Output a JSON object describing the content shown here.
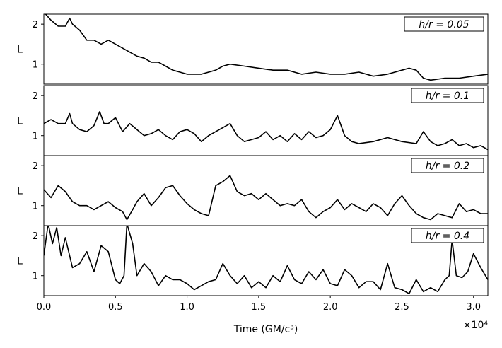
{
  "chart_data": {
    "type": "line",
    "layout": "stacked-panels-shared-x",
    "xlabel": "Time (GM/c³)",
    "x_multiplier": "×10⁴",
    "xlim": [
      0,
      31000
    ],
    "x_ticks": [
      0,
      5000,
      10000,
      15000,
      20000,
      25000,
      30000
    ],
    "x_tick_labels": [
      "0.0",
      "0.5",
      "1.0",
      "1.5",
      "2.0",
      "2.5",
      "3.0"
    ],
    "ylabel": "L",
    "ylim": [
      0.5,
      2.25
    ],
    "y_ticks": [
      1,
      2
    ],
    "y_tick_labels": [
      "1",
      "2"
    ],
    "line_color": "#000000",
    "panels": [
      {
        "label": "h/r = 0.05",
        "x": [
          0,
          500,
          1000,
          1500,
          1800,
          2000,
          2500,
          3000,
          3500,
          4000,
          4500,
          5000,
          5500,
          6000,
          6500,
          7000,
          7500,
          8000,
          8500,
          9000,
          9500,
          10000,
          11000,
          12000,
          12500,
          13000,
          14000,
          15000,
          16000,
          17000,
          18000,
          19000,
          20000,
          21000,
          22000,
          23000,
          24000,
          25000,
          25500,
          26000,
          26500,
          27000,
          28000,
          29000,
          30000,
          31000
        ],
        "y": [
          2.3,
          2.1,
          1.95,
          1.95,
          2.15,
          2.0,
          1.85,
          1.6,
          1.6,
          1.5,
          1.6,
          1.5,
          1.4,
          1.3,
          1.2,
          1.15,
          1.05,
          1.05,
          0.95,
          0.85,
          0.8,
          0.75,
          0.75,
          0.85,
          0.95,
          1.0,
          0.95,
          0.9,
          0.85,
          0.85,
          0.75,
          0.8,
          0.75,
          0.75,
          0.8,
          0.7,
          0.75,
          0.85,
          0.9,
          0.85,
          0.65,
          0.6,
          0.65,
          0.65,
          0.7,
          0.75
        ]
      },
      {
        "label": "h/r = 0.1",
        "x": [
          0,
          500,
          1000,
          1500,
          1800,
          2000,
          2500,
          3000,
          3500,
          3900,
          4200,
          4500,
          5000,
          5500,
          6000,
          6500,
          7000,
          7500,
          8000,
          8500,
          9000,
          9500,
          10000,
          10500,
          11000,
          11500,
          12000,
          12500,
          13000,
          13500,
          14000,
          14500,
          15000,
          15500,
          16000,
          16500,
          17000,
          17500,
          18000,
          18500,
          19000,
          19500,
          20000,
          20500,
          21000,
          21500,
          22000,
          23000,
          24000,
          25000,
          26000,
          26500,
          27000,
          27500,
          28000,
          28500,
          29000,
          29500,
          30000,
          30500,
          31000
        ],
        "y": [
          1.3,
          1.4,
          1.3,
          1.3,
          1.55,
          1.3,
          1.15,
          1.1,
          1.25,
          1.6,
          1.3,
          1.3,
          1.45,
          1.1,
          1.3,
          1.15,
          1.0,
          1.05,
          1.15,
          1.0,
          0.9,
          1.1,
          1.15,
          1.05,
          0.85,
          1.0,
          1.1,
          1.2,
          1.3,
          1.0,
          0.85,
          0.9,
          0.95,
          1.1,
          0.9,
          1.0,
          0.85,
          1.05,
          0.9,
          1.1,
          0.95,
          1.0,
          1.15,
          1.5,
          1.0,
          0.85,
          0.8,
          0.85,
          0.95,
          0.85,
          0.8,
          1.1,
          0.85,
          0.75,
          0.8,
          0.9,
          0.75,
          0.8,
          0.7,
          0.75,
          0.65
        ]
      },
      {
        "label": "h/r = 0.2",
        "x": [
          0,
          500,
          1000,
          1500,
          2000,
          2500,
          3000,
          3500,
          4000,
          4500,
          5000,
          5500,
          5800,
          6200,
          6500,
          7000,
          7500,
          8000,
          8500,
          9000,
          9500,
          10000,
          10500,
          11000,
          11500,
          12000,
          12500,
          13000,
          13500,
          14000,
          14500,
          15000,
          15500,
          16000,
          16500,
          17000,
          17500,
          18000,
          18500,
          19000,
          19500,
          20000,
          20500,
          21000,
          21500,
          22000,
          22500,
          23000,
          23500,
          24000,
          24500,
          25000,
          25500,
          26000,
          26500,
          27000,
          27500,
          28000,
          28500,
          29000,
          29500,
          30000,
          30500,
          31000
        ],
        "y": [
          1.4,
          1.2,
          1.5,
          1.35,
          1.1,
          1.0,
          1.0,
          0.9,
          1.0,
          1.1,
          0.95,
          0.85,
          0.65,
          0.9,
          1.1,
          1.3,
          1.0,
          1.2,
          1.45,
          1.5,
          1.25,
          1.05,
          0.9,
          0.8,
          0.75,
          1.5,
          1.6,
          1.75,
          1.35,
          1.25,
          1.3,
          1.15,
          1.3,
          1.15,
          1.0,
          1.05,
          1.0,
          1.15,
          0.85,
          0.7,
          0.85,
          0.95,
          1.15,
          0.9,
          1.05,
          0.95,
          0.85,
          1.05,
          0.95,
          0.75,
          1.05,
          1.25,
          1.0,
          0.8,
          0.7,
          0.65,
          0.8,
          0.75,
          0.7,
          1.05,
          0.85,
          0.9,
          0.8,
          0.8
        ]
      },
      {
        "label": "h/r = 0.4",
        "x": [
          0,
          300,
          600,
          900,
          1200,
          1500,
          2000,
          2500,
          3000,
          3500,
          4000,
          4500,
          5000,
          5300,
          5600,
          5800,
          6200,
          6500,
          7000,
          7500,
          8000,
          8500,
          9000,
          9500,
          10000,
          10500,
          11000,
          11500,
          12000,
          12500,
          13000,
          13500,
          14000,
          14500,
          15000,
          15500,
          16000,
          16500,
          17000,
          17500,
          18000,
          18500,
          19000,
          19500,
          20000,
          20500,
          21000,
          21500,
          22000,
          22500,
          23000,
          23500,
          24000,
          24500,
          25000,
          25500,
          26000,
          26500,
          27000,
          27500,
          28000,
          28300,
          28500,
          28800,
          29200,
          29600,
          30000,
          30500,
          31000
        ],
        "y": [
          1.5,
          2.3,
          1.8,
          2.2,
          1.5,
          1.95,
          1.2,
          1.3,
          1.6,
          1.1,
          1.75,
          1.6,
          0.9,
          0.8,
          1.0,
          2.3,
          1.8,
          1.0,
          1.3,
          1.1,
          0.75,
          1.0,
          0.9,
          0.9,
          0.8,
          0.65,
          0.75,
          0.85,
          0.9,
          1.3,
          1.0,
          0.8,
          1.0,
          0.7,
          0.85,
          0.7,
          1.0,
          0.85,
          1.25,
          0.9,
          0.8,
          1.1,
          0.9,
          1.15,
          0.8,
          0.75,
          1.15,
          1.0,
          0.7,
          0.85,
          0.85,
          0.65,
          1.3,
          0.7,
          0.65,
          0.55,
          0.9,
          0.6,
          0.7,
          0.6,
          0.9,
          1.0,
          1.9,
          1.0,
          0.95,
          1.1,
          1.55,
          1.2,
          0.9
        ]
      }
    ]
  }
}
